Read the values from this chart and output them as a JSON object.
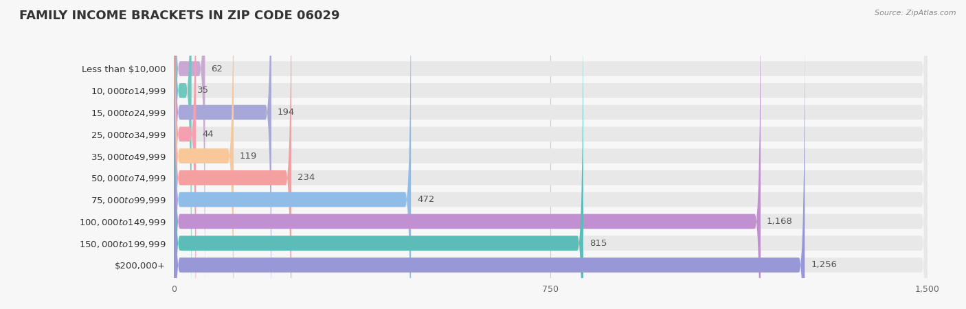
{
  "title": "FAMILY INCOME BRACKETS IN ZIP CODE 06029",
  "source": "Source: ZipAtlas.com",
  "categories": [
    "Less than $10,000",
    "$10,000 to $14,999",
    "$15,000 to $24,999",
    "$25,000 to $34,999",
    "$35,000 to $49,999",
    "$50,000 to $74,999",
    "$75,000 to $99,999",
    "$100,000 to $149,999",
    "$150,000 to $199,999",
    "$200,000+"
  ],
  "values": [
    62,
    35,
    194,
    44,
    119,
    234,
    472,
    1168,
    815,
    1256
  ],
  "bar_colors": [
    "#c9a8d4",
    "#6ec8be",
    "#a8a8d8",
    "#f4a0b0",
    "#f8c89a",
    "#f4a0a0",
    "#90bce8",
    "#c090d0",
    "#5bbcb8",
    "#9898d8"
  ],
  "xlim": [
    0,
    1500
  ],
  "xticks": [
    0,
    750,
    1500
  ],
  "background_color": "#f7f7f7",
  "bar_background_color": "#e8e8e8",
  "row_bg_colors": [
    "#ffffff",
    "#f0f0f0"
  ],
  "title_fontsize": 13,
  "label_fontsize": 9.5,
  "value_fontsize": 9.5,
  "bar_height": 0.68
}
